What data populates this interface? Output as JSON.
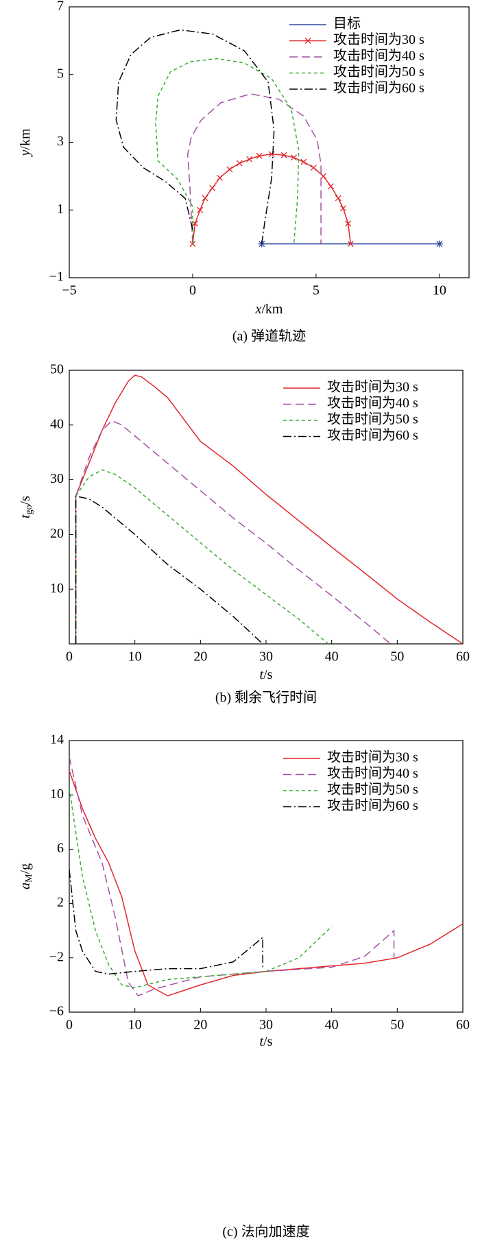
{
  "chart_data": [
    {
      "type": "line",
      "caption": "(a) 弹道轨迹",
      "xlabel": {
        "main": "x",
        "unit": "/km"
      },
      "ylabel": {
        "main": "y",
        "unit": "/km"
      },
      "xlim": [
        -5,
        11.2
      ],
      "ylim": [
        -1,
        7
      ],
      "xticks": [
        {
          "value": -5,
          "label": "−5"
        },
        0,
        5,
        10
      ],
      "yticks": [
        {
          "value": -1,
          "label": "−1"
        },
        1,
        3,
        5,
        7
      ],
      "legend": "upper right",
      "series": [
        {
          "name": "目标",
          "color": "#2e4a9e",
          "linestyle": "-",
          "marker": "*",
          "x": [
            2.8,
            10
          ],
          "values": [
            0,
            0
          ]
        },
        {
          "name": "攻击时间为30 s",
          "color": "#e0262b",
          "linestyle": "-",
          "marker": "x",
          "x": [
            0,
            0.1,
            0.3,
            0.5,
            0.8,
            1.1,
            1.5,
            1.9,
            2.3,
            2.7,
            3.2,
            3.7,
            4.1,
            4.5,
            4.9,
            5.3,
            5.6,
            5.9,
            6.1,
            6.3,
            6.4
          ],
          "values": [
            0,
            0.6,
            1.0,
            1.35,
            1.65,
            1.95,
            2.2,
            2.38,
            2.5,
            2.6,
            2.65,
            2.62,
            2.55,
            2.42,
            2.25,
            2.0,
            1.7,
            1.35,
            1.05,
            0.6,
            0
          ]
        },
        {
          "name": "攻击时间为40 s",
          "color": "#a450a4",
          "linestyle": "--",
          "x": [
            0,
            -0.1,
            -0.2,
            -0.05,
            0.35,
            1.15,
            2.35,
            3.5,
            4.5,
            5.05,
            5.2,
            5.2
          ],
          "values": [
            0,
            1.54,
            2.65,
            3.16,
            3.66,
            4.17,
            4.43,
            4.27,
            3.77,
            3.06,
            2.35,
            0
          ]
        },
        {
          "name": "攻击时间为50 s",
          "color": "#3aaa35",
          "linestyle": ":",
          "x": [
            0,
            0,
            -0.6,
            -1.4,
            -1.5,
            -1.4,
            -0.9,
            -0.1,
            1.0,
            2.1,
            3.2,
            4.0,
            4.3,
            4.25,
            4.1
          ],
          "values": [
            0,
            1.1,
            1.9,
            2.45,
            3.56,
            4.37,
            5.08,
            5.38,
            5.47,
            5.34,
            4.88,
            3.97,
            2.75,
            1.34,
            0
          ]
        },
        {
          "name": "攻击时间为60 s",
          "color": "#000000",
          "linestyle": "-.",
          "x": [
            0,
            -0.3,
            -1.1,
            -2.0,
            -2.8,
            -3.1,
            -3.0,
            -2.5,
            -1.7,
            -0.5,
            0.8,
            2.1,
            3.06,
            3.3,
            3.2,
            2.9,
            2.8
          ],
          "values": [
            0.43,
            1.34,
            1.84,
            2.25,
            2.85,
            3.66,
            4.78,
            5.59,
            6.1,
            6.32,
            6.2,
            5.7,
            4.78,
            3.36,
            1.94,
            0.53,
            0
          ]
        }
      ]
    },
    {
      "type": "line",
      "caption": "(b) 剩余飞行时间",
      "xlabel": {
        "main": "t",
        "unit": "/s"
      },
      "ylabel": {
        "main": "t",
        "sub": "go",
        "unit": "/s"
      },
      "xlim": [
        0,
        60
      ],
      "ylim": [
        0,
        50
      ],
      "xticks": [
        0,
        10,
        20,
        30,
        40,
        50,
        60
      ],
      "yticks": [
        10,
        20,
        30,
        40,
        50
      ],
      "legend": "upper right",
      "series": [
        {
          "name": "攻击时间为30 s",
          "color": "#e0262b",
          "linestyle": "-",
          "x": [
            1,
            1,
            3,
            5,
            7,
            9,
            10,
            11,
            13,
            15,
            20,
            25,
            30,
            35,
            40,
            45,
            50,
            55,
            60
          ],
          "values": [
            0,
            27,
            33,
            39,
            44,
            48,
            49.1,
            48.8,
            47,
            45,
            37,
            32.5,
            27.3,
            22.5,
            17.7,
            13,
            8.2,
            4,
            0
          ]
        },
        {
          "name": "攻击时间为40 s",
          "color": "#a450a4",
          "linestyle": "--",
          "x": [
            1,
            1,
            3,
            5,
            6.5,
            8,
            10,
            15,
            20,
            25,
            30,
            35,
            40,
            45,
            49
          ],
          "values": [
            0,
            27,
            34,
            39,
            40.8,
            40,
            38,
            33,
            28,
            23,
            18.4,
            13.5,
            8.8,
            4,
            0
          ]
        },
        {
          "name": "攻击时间为50 s",
          "color": "#3aaa35",
          "linestyle": ":",
          "x": [
            1,
            1,
            3,
            5,
            7,
            10,
            15,
            20,
            25,
            30,
            35,
            39.5
          ],
          "values": [
            0,
            27,
            30.5,
            31.8,
            31,
            28.5,
            23.5,
            18.5,
            13.5,
            9,
            4.5,
            0
          ]
        },
        {
          "name": "攻击时间为60 s",
          "color": "#000000",
          "linestyle": "-.",
          "x": [
            1,
            1,
            3,
            5,
            10,
            15,
            20,
            25,
            29.5
          ],
          "values": [
            0,
            27,
            26.5,
            25,
            20,
            14.5,
            10,
            5,
            0
          ]
        }
      ]
    },
    {
      "type": "line",
      "caption": "(c) 法向加速度",
      "xlabel": {
        "main": "t",
        "unit": "/s"
      },
      "ylabel": {
        "main": "a",
        "sub": "M",
        "unit": "/g"
      },
      "xlim": [
        0,
        60
      ],
      "ylim": [
        -6,
        14
      ],
      "xticks": [
        0,
        10,
        20,
        30,
        40,
        50,
        60
      ],
      "yticks": [
        {
          "value": -6,
          "label": "−6"
        },
        {
          "value": -2,
          "label": "−2"
        },
        2,
        6,
        10,
        14
      ],
      "legend": "upper right",
      "series": [
        {
          "name": "攻击时间为30 s",
          "color": "#e0262b",
          "linestyle": "-",
          "x": [
            0,
            2,
            4,
            6,
            8,
            10,
            12,
            15,
            20,
            25,
            30,
            40,
            45,
            50,
            55,
            60
          ],
          "values": [
            11.8,
            9,
            6.8,
            5,
            2.5,
            -1.5,
            -4,
            -4.8,
            -4,
            -3.3,
            -3,
            -2.6,
            -2.4,
            -2,
            -1,
            0.5
          ]
        },
        {
          "name": "攻击时间为40 s",
          "color": "#a450a4",
          "linestyle": "--",
          "x": [
            0,
            2,
            5,
            7,
            9,
            10.5,
            13,
            20,
            30,
            40,
            45,
            49.5,
            49.5
          ],
          "values": [
            12.8,
            8.5,
            5,
            1,
            -3.8,
            -4.8,
            -4.3,
            -3.4,
            -3,
            -2.7,
            -1.9,
            0,
            -2
          ]
        },
        {
          "name": "攻击时间为50 s",
          "color": "#3aaa35",
          "linestyle": ":",
          "x": [
            0,
            2,
            4,
            6,
            8,
            10,
            15,
            20,
            30,
            35,
            40
          ],
          "values": [
            10.5,
            4,
            0,
            -2.5,
            -4,
            -4.2,
            -3.6,
            -3.4,
            -3,
            -2,
            0.3
          ]
        },
        {
          "name": "攻击时间为60 s",
          "color": "#000000",
          "linestyle": "-.",
          "x": [
            0,
            1,
            2,
            4,
            6,
            10,
            15,
            20,
            25,
            29.5,
            29.5
          ],
          "values": [
            4.5,
            0,
            -1.5,
            -3,
            -3.2,
            -3,
            -2.8,
            -2.8,
            -2.3,
            -0.5,
            -2.7
          ]
        }
      ]
    }
  ]
}
